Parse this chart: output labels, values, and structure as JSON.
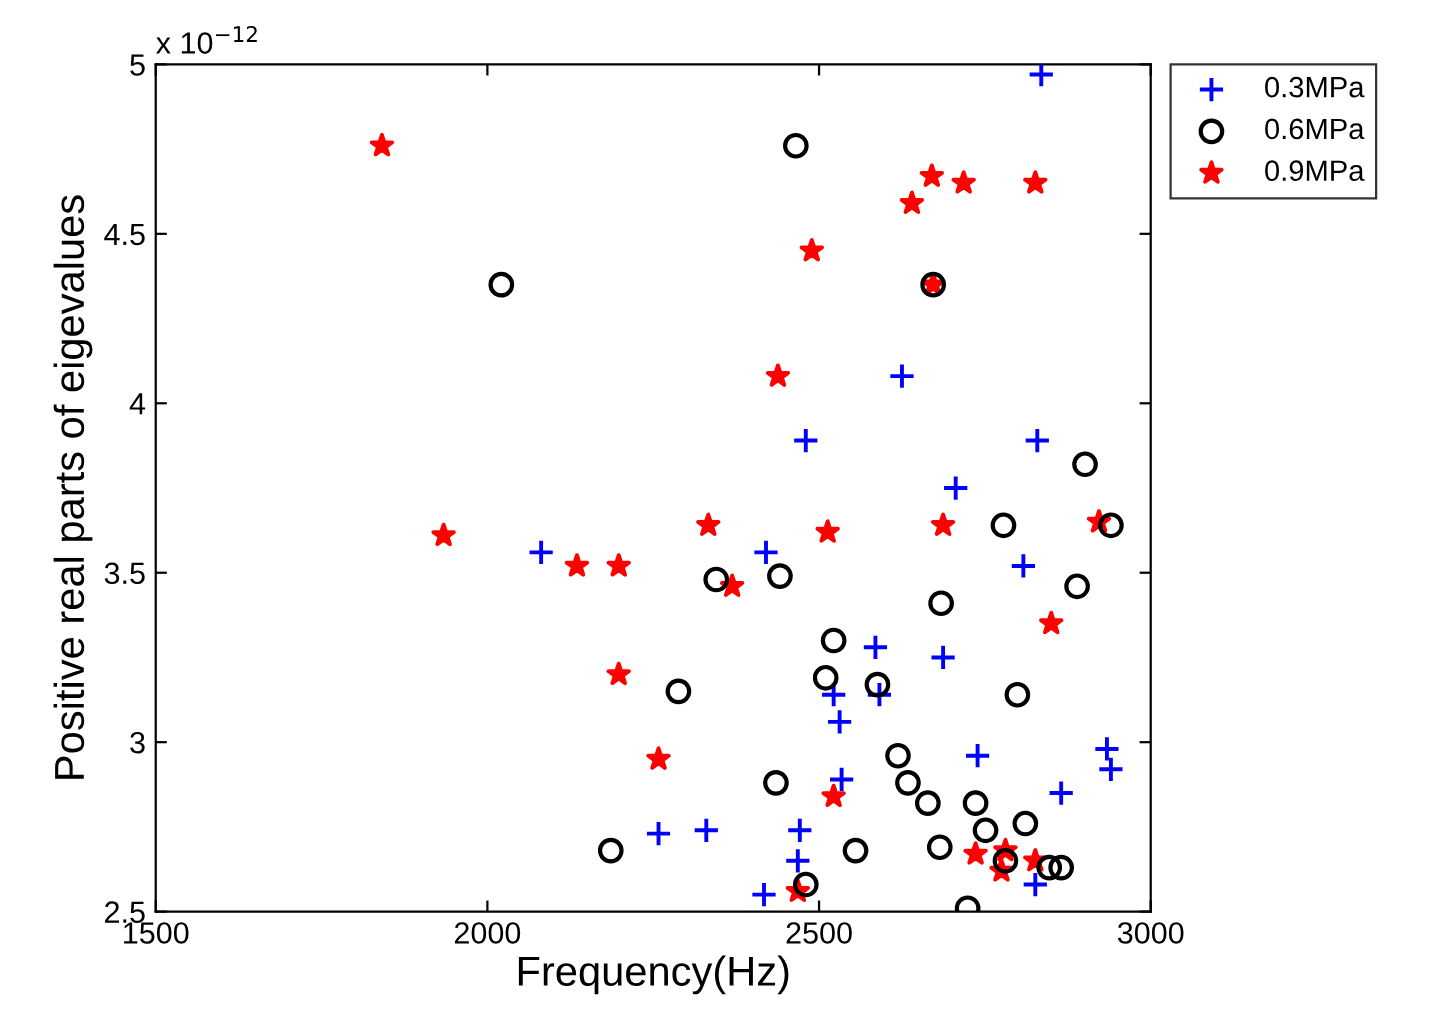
{
  "chart_data": {
    "type": "scatter",
    "xlabel": "Frequency(Hz)",
    "ylabel": "Positive real parts of eigevalues",
    "annotations": [
      "x 10$^{−12}$"
    ],
    "xlim": [
      1500,
      3000
    ],
    "xticks": [
      1500,
      2000,
      2500,
      3000
    ],
    "ylim": [
      2.5,
      5
    ],
    "yticks": [
      2.5,
      3,
      3.5,
      4,
      4.5,
      5
    ],
    "grid": false,
    "legend": "top right",
    "series": [
      {
        "name": "0.3MPa",
        "color": "#0000ff",
        "marker": "cross",
        "x": [
          2835,
          2625,
          2480,
          2829,
          2706,
          2081,
          2420,
          2808,
          2585,
          2687,
          2522,
          2591,
          2531,
          2739,
          2934,
          2940,
          2534,
          2865,
          2258,
          2330,
          2471,
          2468,
          2826,
          2417
        ],
        "values": [
          4.97,
          4.08,
          3.89,
          3.89,
          3.75,
          3.56,
          3.56,
          3.52,
          3.28,
          3.25,
          3.14,
          3.14,
          3.06,
          2.96,
          2.98,
          2.92,
          2.89,
          2.85,
          2.73,
          2.74,
          2.74,
          2.65,
          2.58,
          2.55
        ]
      },
      {
        "name": "0.6MPa",
        "color": "#000000",
        "marker": "circle",
        "x": [
          2021,
          2465,
          2672,
          2901,
          2778,
          2940,
          2345,
          2441,
          2889,
          2684,
          2522,
          2288,
          2510,
          2588,
          2799,
          2619,
          2634,
          2435,
          2664,
          2736,
          2751,
          2811,
          2186,
          2555,
          2682,
          2781,
          2847,
          2865,
          2480,
          2724
        ],
        "values": [
          4.35,
          4.76,
          4.35,
          3.82,
          3.64,
          3.64,
          3.48,
          3.49,
          3.46,
          3.41,
          3.3,
          3.15,
          3.19,
          3.17,
          3.14,
          2.96,
          2.88,
          2.88,
          2.82,
          2.82,
          2.74,
          2.76,
          2.68,
          2.68,
          2.69,
          2.65,
          2.63,
          2.63,
          2.58,
          2.51
        ]
      },
      {
        "name": "0.9MPa",
        "color": "#ff0000",
        "marker": "star",
        "x": [
          1841,
          2670,
          2718,
          2826,
          2640,
          2489,
          2672,
          2438,
          1934,
          2135,
          2198,
          2333,
          2513,
          2687,
          2922,
          2369,
          2850,
          2198,
          2258,
          2522,
          2736,
          2781,
          2826,
          2775,
          2468
        ],
        "values": [
          4.76,
          4.67,
          4.65,
          4.65,
          4.59,
          4.45,
          4.35,
          4.08,
          3.61,
          3.52,
          3.52,
          3.64,
          3.62,
          3.64,
          3.65,
          3.46,
          3.35,
          3.2,
          2.95,
          2.84,
          2.67,
          2.68,
          2.65,
          2.62,
          2.56
        ]
      }
    ]
  }
}
